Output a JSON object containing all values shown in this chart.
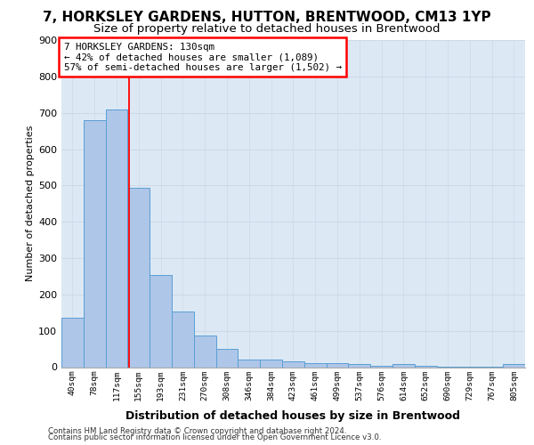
{
  "title1": "7, HORKSLEY GARDENS, HUTTON, BRENTWOOD, CM13 1YP",
  "title2": "Size of property relative to detached houses in Brentwood",
  "xlabel": "Distribution of detached houses by size in Brentwood",
  "ylabel": "Number of detached properties",
  "bar_labels": [
    "40sqm",
    "78sqm",
    "117sqm",
    "155sqm",
    "193sqm",
    "231sqm",
    "270sqm",
    "308sqm",
    "346sqm",
    "384sqm",
    "423sqm",
    "461sqm",
    "499sqm",
    "537sqm",
    "576sqm",
    "614sqm",
    "652sqm",
    "690sqm",
    "729sqm",
    "767sqm",
    "805sqm"
  ],
  "bar_values": [
    135,
    680,
    710,
    493,
    253,
    153,
    88,
    50,
    22,
    20,
    17,
    12,
    10,
    8,
    4,
    8,
    3,
    2,
    2,
    1,
    8
  ],
  "bar_color": "#aec6e8",
  "bar_edge_color": "#5a9fd4",
  "grid_color": "#d0d8e8",
  "bg_color": "#dce9f5",
  "annotation_line1": "7 HORKSLEY GARDENS: 130sqm",
  "annotation_line2": "← 42% of detached houses are smaller (1,089)",
  "annotation_line3": "57% of semi-detached houses are larger (1,502) →",
  "red_line_x": 2.58,
  "ylim_max": 900,
  "yticks": [
    0,
    100,
    200,
    300,
    400,
    500,
    600,
    700,
    800,
    900
  ],
  "footer1": "Contains HM Land Registry data © Crown copyright and database right 2024.",
  "footer2": "Contains public sector information licensed under the Open Government Licence v3.0.",
  "title1_fontsize": 11,
  "title2_fontsize": 9.5
}
